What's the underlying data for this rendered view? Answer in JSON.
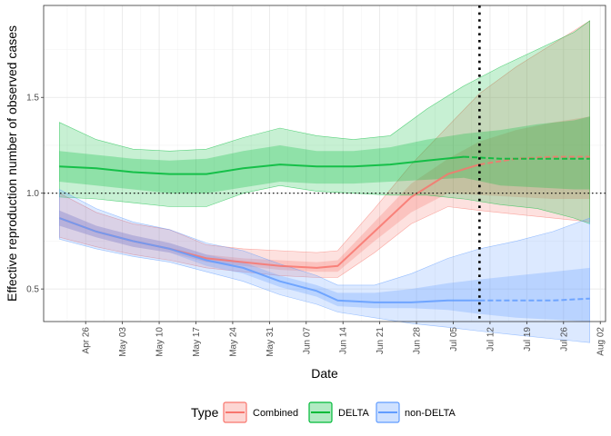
{
  "chart_data": {
    "type": "line",
    "title": "",
    "xlabel": "Date",
    "ylabel": "Effective reproduction number of observed cases",
    "x_tick_labels": [
      "Apr 26",
      "May 03",
      "May 10",
      "May 17",
      "May 24",
      "May 31",
      "Jun 07",
      "Jun 14",
      "Jun 21",
      "Jun 28",
      "Jul 05",
      "Jul 12",
      "Jul 19",
      "Jul 26",
      "Aug 02"
    ],
    "x_ticks": [
      "2021-04-26",
      "2021-05-03",
      "2021-05-10",
      "2021-05-17",
      "2021-05-24",
      "2021-05-31",
      "2021-06-07",
      "2021-06-14",
      "2021-06-21",
      "2021-06-28",
      "2021-07-05",
      "2021-07-12",
      "2021-07-19",
      "2021-07-26",
      "2021-08-02"
    ],
    "xlim": [
      "2021-04-18",
      "2021-08-03"
    ],
    "y_ticks": [
      0.5,
      1.0,
      1.5
    ],
    "y_tick_labels": [
      "0.5",
      "1.0",
      "1.5"
    ],
    "ylim": [
      0.33,
      1.98
    ],
    "reference_line_y": 1.0,
    "vertical_line_x": "2021-07-10",
    "grid": true,
    "legend": {
      "title": "Type",
      "position": "bottom",
      "entries": [
        "Combined",
        "DELTA",
        "non-DELTA"
      ]
    },
    "series": [
      {
        "name": "Combined",
        "color": "#F8766D",
        "x": [
          "2021-04-21",
          "2021-04-28",
          "2021-05-05",
          "2021-05-12",
          "2021-05-19",
          "2021-05-26",
          "2021-06-02",
          "2021-06-09",
          "2021-06-13",
          "2021-06-20",
          "2021-06-27",
          "2021-07-04",
          "2021-07-10",
          "2021-07-17",
          "2021-07-24",
          "2021-07-31"
        ],
        "median": [
          0.87,
          0.8,
          0.75,
          0.71,
          0.66,
          0.64,
          0.62,
          0.61,
          0.62,
          0.8,
          0.98,
          1.1,
          1.15,
          1.18,
          1.19,
          1.19
        ],
        "inner_low": [
          0.83,
          0.77,
          0.72,
          0.69,
          0.64,
          0.62,
          0.6,
          0.59,
          0.59,
          0.75,
          0.9,
          1.0,
          0.99,
          0.98,
          0.97,
          0.97
        ],
        "inner_high": [
          0.91,
          0.83,
          0.78,
          0.74,
          0.68,
          0.66,
          0.65,
          0.64,
          0.65,
          0.85,
          1.05,
          1.18,
          1.27,
          1.33,
          1.37,
          1.4
        ],
        "outer_low": [
          0.77,
          0.72,
          0.68,
          0.65,
          0.61,
          0.59,
          0.57,
          0.56,
          0.56,
          0.69,
          0.84,
          0.93,
          0.91,
          0.89,
          0.87,
          0.85
        ],
        "outer_high": [
          1.0,
          0.9,
          0.84,
          0.81,
          0.73,
          0.71,
          0.7,
          0.69,
          0.7,
          0.92,
          1.15,
          1.35,
          1.52,
          1.66,
          1.78,
          1.9
        ],
        "dashed_from": "2021-07-10"
      },
      {
        "name": "DELTA",
        "color": "#00BA38",
        "x": [
          "2021-04-21",
          "2021-04-28",
          "2021-05-05",
          "2021-05-12",
          "2021-05-19",
          "2021-05-26",
          "2021-06-02",
          "2021-06-09",
          "2021-06-16",
          "2021-06-23",
          "2021-06-30",
          "2021-07-07",
          "2021-07-14",
          "2021-07-21",
          "2021-07-28",
          "2021-07-31"
        ],
        "median": [
          1.14,
          1.13,
          1.11,
          1.1,
          1.1,
          1.13,
          1.15,
          1.14,
          1.14,
          1.15,
          1.17,
          1.19,
          1.18,
          1.18,
          1.18,
          1.18
        ],
        "inner_low": [
          1.06,
          1.04,
          1.02,
          1.0,
          1.0,
          1.03,
          1.06,
          1.05,
          1.05,
          1.06,
          1.07,
          1.08,
          1.04,
          1.03,
          1.02,
          1.02
        ],
        "inner_high": [
          1.22,
          1.2,
          1.18,
          1.17,
          1.18,
          1.22,
          1.25,
          1.22,
          1.22,
          1.24,
          1.28,
          1.31,
          1.33,
          1.36,
          1.38,
          1.4
        ],
        "outer_low": [
          0.98,
          0.97,
          0.95,
          0.93,
          0.93,
          1.0,
          1.04,
          1.01,
          1.0,
          0.99,
          0.99,
          0.97,
          0.94,
          0.92,
          0.87,
          0.84
        ],
        "outer_high": [
          1.37,
          1.28,
          1.23,
          1.22,
          1.23,
          1.29,
          1.34,
          1.3,
          1.28,
          1.3,
          1.44,
          1.56,
          1.66,
          1.75,
          1.84,
          1.9
        ],
        "dashed_from": "2021-07-10"
      },
      {
        "name": "non-DELTA",
        "color": "#619CFF",
        "x": [
          "2021-04-21",
          "2021-04-28",
          "2021-05-05",
          "2021-05-12",
          "2021-05-19",
          "2021-05-26",
          "2021-06-02",
          "2021-06-09",
          "2021-06-13",
          "2021-06-20",
          "2021-06-27",
          "2021-07-04",
          "2021-07-10",
          "2021-07-17",
          "2021-07-24",
          "2021-07-31"
        ],
        "median": [
          0.87,
          0.8,
          0.75,
          0.71,
          0.65,
          0.61,
          0.54,
          0.49,
          0.44,
          0.43,
          0.43,
          0.44,
          0.44,
          0.44,
          0.44,
          0.45
        ],
        "inner_low": [
          0.83,
          0.77,
          0.72,
          0.69,
          0.62,
          0.58,
          0.51,
          0.46,
          0.41,
          0.4,
          0.4,
          0.39,
          0.37,
          0.35,
          0.34,
          0.33
        ],
        "inner_high": [
          0.91,
          0.83,
          0.78,
          0.74,
          0.68,
          0.64,
          0.57,
          0.52,
          0.48,
          0.48,
          0.5,
          0.53,
          0.55,
          0.57,
          0.59,
          0.61
        ],
        "outer_low": [
          0.76,
          0.71,
          0.67,
          0.64,
          0.59,
          0.54,
          0.47,
          0.42,
          0.38,
          0.35,
          0.32,
          0.3,
          0.28,
          0.26,
          0.24,
          0.22
        ],
        "outer_high": [
          1.02,
          0.92,
          0.85,
          0.81,
          0.74,
          0.7,
          0.63,
          0.57,
          0.52,
          0.52,
          0.58,
          0.66,
          0.71,
          0.75,
          0.8,
          0.87
        ],
        "dashed_from": "2021-07-10"
      }
    ]
  }
}
